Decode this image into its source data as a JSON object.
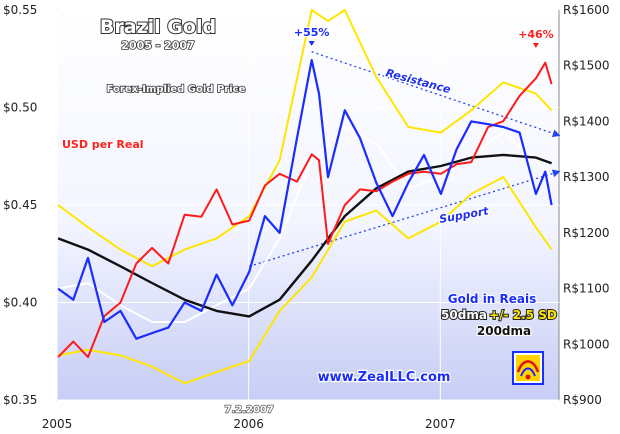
{
  "chart_data": {
    "type": "line",
    "title": "Brazil Gold",
    "subtitle": "2005 - 2007",
    "x_ticks": [
      "2005",
      "2006",
      "2007"
    ],
    "x_range": [
      "2005-01-01",
      "2007-08-15"
    ],
    "y_left": {
      "range": [
        0.35,
        0.55
      ],
      "tick_labels": [
        "$0.35",
        "$0.40",
        "$0.45",
        "$0.50",
        "$0.55"
      ],
      "tick_values": [
        0.35,
        0.4,
        0.45,
        0.5,
        0.55
      ]
    },
    "y_right": {
      "range": [
        900,
        1600
      ],
      "tick_labels": [
        "R$900",
        "R$1000",
        "R$1100",
        "R$1200",
        "R$1300",
        "R$1400",
        "R$1500",
        "R$1600"
      ],
      "tick_values": [
        900,
        1000,
        1100,
        1200,
        1300,
        1400,
        1500,
        1600
      ]
    },
    "grid": true,
    "legend_position": "bottom-right",
    "series": [
      {
        "name": "USD per Real",
        "axis": "left",
        "color": "#ff1a1a",
        "x": [
          "2005-01-03",
          "2005-02-01",
          "2005-03-01",
          "2005-04-01",
          "2005-05-02",
          "2005-06-01",
          "2005-07-01",
          "2005-08-01",
          "2005-09-01",
          "2005-10-03",
          "2005-11-01",
          "2005-12-01",
          "2006-01-02",
          "2006-02-01",
          "2006-03-01",
          "2006-04-03",
          "2006-05-01",
          "2006-05-15",
          "2006-06-01",
          "2006-07-03",
          "2006-08-01",
          "2006-09-01",
          "2006-10-02",
          "2006-11-01",
          "2006-12-01",
          "2007-01-02",
          "2007-02-01",
          "2007-03-01",
          "2007-04-02",
          "2007-05-01",
          "2007-06-01",
          "2007-07-02",
          "2007-07-20",
          "2007-08-01"
        ],
        "values": [
          0.372,
          0.38,
          0.372,
          0.393,
          0.4,
          0.42,
          0.428,
          0.42,
          0.445,
          0.444,
          0.458,
          0.44,
          0.442,
          0.46,
          0.466,
          0.462,
          0.476,
          0.473,
          0.43,
          0.45,
          0.458,
          0.457,
          0.462,
          0.466,
          0.467,
          0.466,
          0.471,
          0.472,
          0.49,
          0.493,
          0.506,
          0.515,
          0.523,
          0.512
        ]
      },
      {
        "name": "Gold in Reais",
        "axis": "right",
        "color": "#1a2cff",
        "x": [
          "2005-01-03",
          "2005-02-01",
          "2005-03-01",
          "2005-04-01",
          "2005-05-02",
          "2005-06-01",
          "2005-07-01",
          "2005-08-01",
          "2005-09-01",
          "2005-10-03",
          "2005-11-01",
          "2005-12-01",
          "2006-01-02",
          "2006-02-01",
          "2006-03-01",
          "2006-04-03",
          "2006-05-01",
          "2006-05-15",
          "2006-06-01",
          "2006-07-03",
          "2006-08-01",
          "2006-09-01",
          "2006-10-02",
          "2006-11-01",
          "2006-12-01",
          "2007-01-02",
          "2007-02-01",
          "2007-03-01",
          "2007-04-02",
          "2007-05-01",
          "2007-06-01",
          "2007-07-02",
          "2007-07-20",
          "2007-08-01"
        ],
        "values": [
          1100,
          1080,
          1155,
          1040,
          1060,
          1010,
          1020,
          1030,
          1075,
          1060,
          1125,
          1070,
          1130,
          1230,
          1200,
          1370,
          1510,
          1450,
          1300,
          1420,
          1370,
          1290,
          1230,
          1290,
          1340,
          1270,
          1350,
          1400,
          1395,
          1390,
          1380,
          1270,
          1310,
          1250
        ]
      },
      {
        "name": "50dma",
        "axis": "right",
        "color": "#ffffff",
        "x": [
          "2005-01-03",
          "2005-03-01",
          "2005-05-02",
          "2005-07-01",
          "2005-09-01",
          "2005-11-01",
          "2006-01-02",
          "2006-03-01",
          "2006-05-01",
          "2006-07-03",
          "2006-09-01",
          "2006-11-01",
          "2007-01-02",
          "2007-03-01",
          "2007-05-01",
          "2007-07-02",
          "2007-08-01"
        ],
        "values": [
          1100,
          1110,
          1070,
          1040,
          1040,
          1070,
          1100,
          1190,
          1330,
          1390,
          1360,
          1280,
          1300,
          1340,
          1380,
          1330,
          1300
        ]
      },
      {
        "name": "+2.5 SD",
        "axis": "right",
        "color": "#ffe600",
        "x": [
          "2005-01-03",
          "2005-03-01",
          "2005-05-02",
          "2005-07-01",
          "2005-09-01",
          "2005-11-01",
          "2006-01-02",
          "2006-03-01",
          "2006-05-01",
          "2006-06-01",
          "2006-07-03",
          "2006-09-01",
          "2006-11-01",
          "2007-01-02",
          "2007-03-01",
          "2007-05-01",
          "2007-07-02",
          "2007-08-01"
        ],
        "values": [
          1250,
          1210,
          1170,
          1140,
          1170,
          1190,
          1230,
          1330,
          1600,
          1580,
          1600,
          1480,
          1390,
          1380,
          1420,
          1470,
          1450,
          1420
        ]
      },
      {
        "name": "-2.5 SD",
        "axis": "right",
        "color": "#ffe600",
        "x": [
          "2005-01-03",
          "2005-03-01",
          "2005-05-02",
          "2005-07-01",
          "2005-09-01",
          "2005-11-01",
          "2006-01-02",
          "2006-03-01",
          "2006-05-01",
          "2006-07-03",
          "2006-09-01",
          "2006-11-01",
          "2007-01-02",
          "2007-03-01",
          "2007-05-01",
          "2007-07-02",
          "2007-08-01"
        ],
        "values": [
          980,
          990,
          980,
          960,
          930,
          950,
          970,
          1060,
          1120,
          1220,
          1240,
          1190,
          1220,
          1270,
          1300,
          1210,
          1170
        ]
      },
      {
        "name": "200dma",
        "axis": "right",
        "color": "#111111",
        "x": [
          "2005-01-03",
          "2005-03-01",
          "2005-05-02",
          "2005-07-01",
          "2005-09-01",
          "2005-11-01",
          "2006-01-02",
          "2006-03-01",
          "2006-05-01",
          "2006-07-03",
          "2006-09-01",
          "2006-11-01",
          "2007-01-02",
          "2007-03-01",
          "2007-05-01",
          "2007-07-02",
          "2007-08-01"
        ],
        "values": [
          1190,
          1170,
          1140,
          1110,
          1080,
          1060,
          1050,
          1080,
          1150,
          1230,
          1280,
          1310,
          1320,
          1335,
          1340,
          1335,
          1325
        ]
      }
    ],
    "trendlines": [
      {
        "name": "Resistance",
        "color": "#2244ee",
        "x": [
          "2006-05-01",
          "2007-08-15"
        ],
        "y": [
          1525,
          1375
        ],
        "axis": "right"
      },
      {
        "name": "Support",
        "color": "#2244ee",
        "x": [
          "2006-01-02",
          "2007-08-15"
        ],
        "y": [
          1140,
          1310
        ],
        "axis": "right"
      }
    ],
    "annotations": [
      {
        "text": "+55%",
        "color": "#1a2cff",
        "x": "2006-05-01",
        "y": 1600,
        "axis": "right"
      },
      {
        "text": "+46%",
        "color": "#ff1a1a",
        "x": "2007-07-02",
        "y": 0.549,
        "axis": "left"
      },
      {
        "text": "7.2.2007",
        "x": "2006-01-02",
        "y": 0.357,
        "axis": "left"
      }
    ],
    "labels": {
      "forex_note": "Forex-Implied Gold Price",
      "usd_label": "USD per Real",
      "resistance": "Resistance",
      "support": "Support",
      "legend_gold": "Gold in Reais",
      "legend_50dma": "50dma",
      "legend_sd": "+/- 2.5 SD",
      "legend_200dma": "200dma",
      "url": "www.ZealLLC.com"
    }
  }
}
